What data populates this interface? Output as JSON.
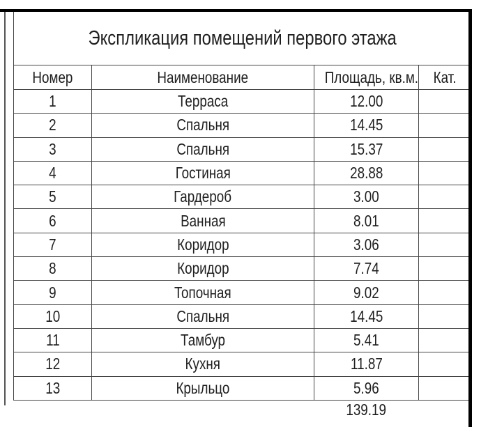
{
  "sheet": {
    "title": "Экспликация помещений первого этажа",
    "columns": [
      "Номер",
      "Наименование",
      "Площадь, кв.м.",
      "Кат."
    ],
    "rows": [
      {
        "num": "1",
        "name": "Терраса",
        "area": "12.00",
        "cat": ""
      },
      {
        "num": "2",
        "name": "Спальня",
        "area": "14.45",
        "cat": ""
      },
      {
        "num": "3",
        "name": "Спальня",
        "area": "15.37",
        "cat": ""
      },
      {
        "num": "4",
        "name": "Гостиная",
        "area": "28.88",
        "cat": ""
      },
      {
        "num": "5",
        "name": "Гардероб",
        "area": "3.00",
        "cat": ""
      },
      {
        "num": "6",
        "name": "Ванная",
        "area": "8.01",
        "cat": ""
      },
      {
        "num": "7",
        "name": "Коридор",
        "area": "3.06",
        "cat": ""
      },
      {
        "num": "8",
        "name": "Коридор",
        "area": "7.74",
        "cat": ""
      },
      {
        "num": "9",
        "name": "Топочная",
        "area": "9.02",
        "cat": ""
      },
      {
        "num": "10",
        "name": "Спальня",
        "area": "14.45",
        "cat": ""
      },
      {
        "num": "11",
        "name": "Тамбур",
        "area": "5.41",
        "cat": ""
      },
      {
        "num": "12",
        "name": "Кухня",
        "area": "11.87",
        "cat": ""
      },
      {
        "num": "13",
        "name": "Крыльцо",
        "area": "5.96",
        "cat": ""
      }
    ],
    "total_area": "139.19",
    "colors": {
      "frame_line": "#000000",
      "grid_line": "#454545",
      "text": "#1f1f1f",
      "background": "#ffffff"
    }
  }
}
